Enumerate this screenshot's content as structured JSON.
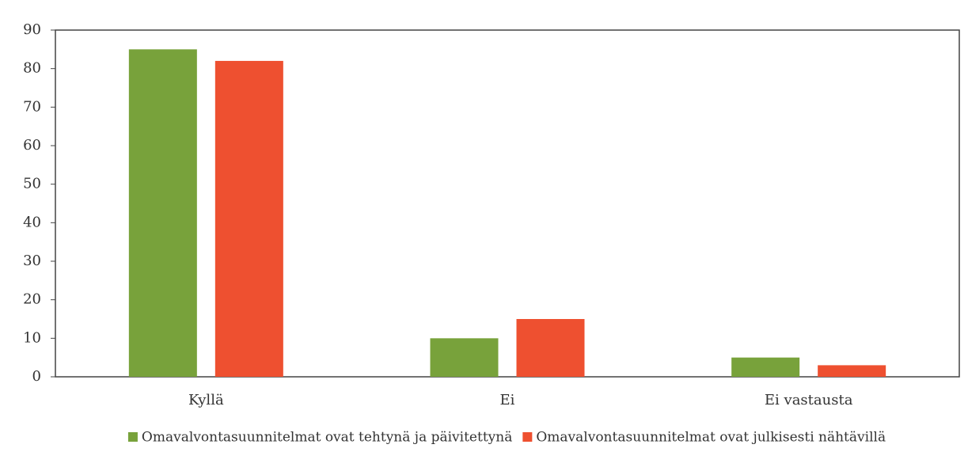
{
  "chart_data": {
    "type": "bar",
    "categories": [
      "Kyllä",
      "Ei",
      "Ei vastausta"
    ],
    "series": [
      {
        "name": "Omavalvontasuunnitelmat ovat tehtynä ja päivitettynä",
        "color": "#78a23b",
        "values": [
          85,
          10,
          5
        ]
      },
      {
        "name": "Omavalvontasuunnitelmat ovat julkisesti nähtävillä",
        "color": "#ee5030",
        "values": [
          82,
          15,
          3
        ]
      }
    ],
    "ylim": [
      0,
      90
    ],
    "yticks": [
      0,
      10,
      20,
      30,
      40,
      50,
      60,
      70,
      80,
      90
    ],
    "grid": false,
    "legend": "bottom"
  }
}
